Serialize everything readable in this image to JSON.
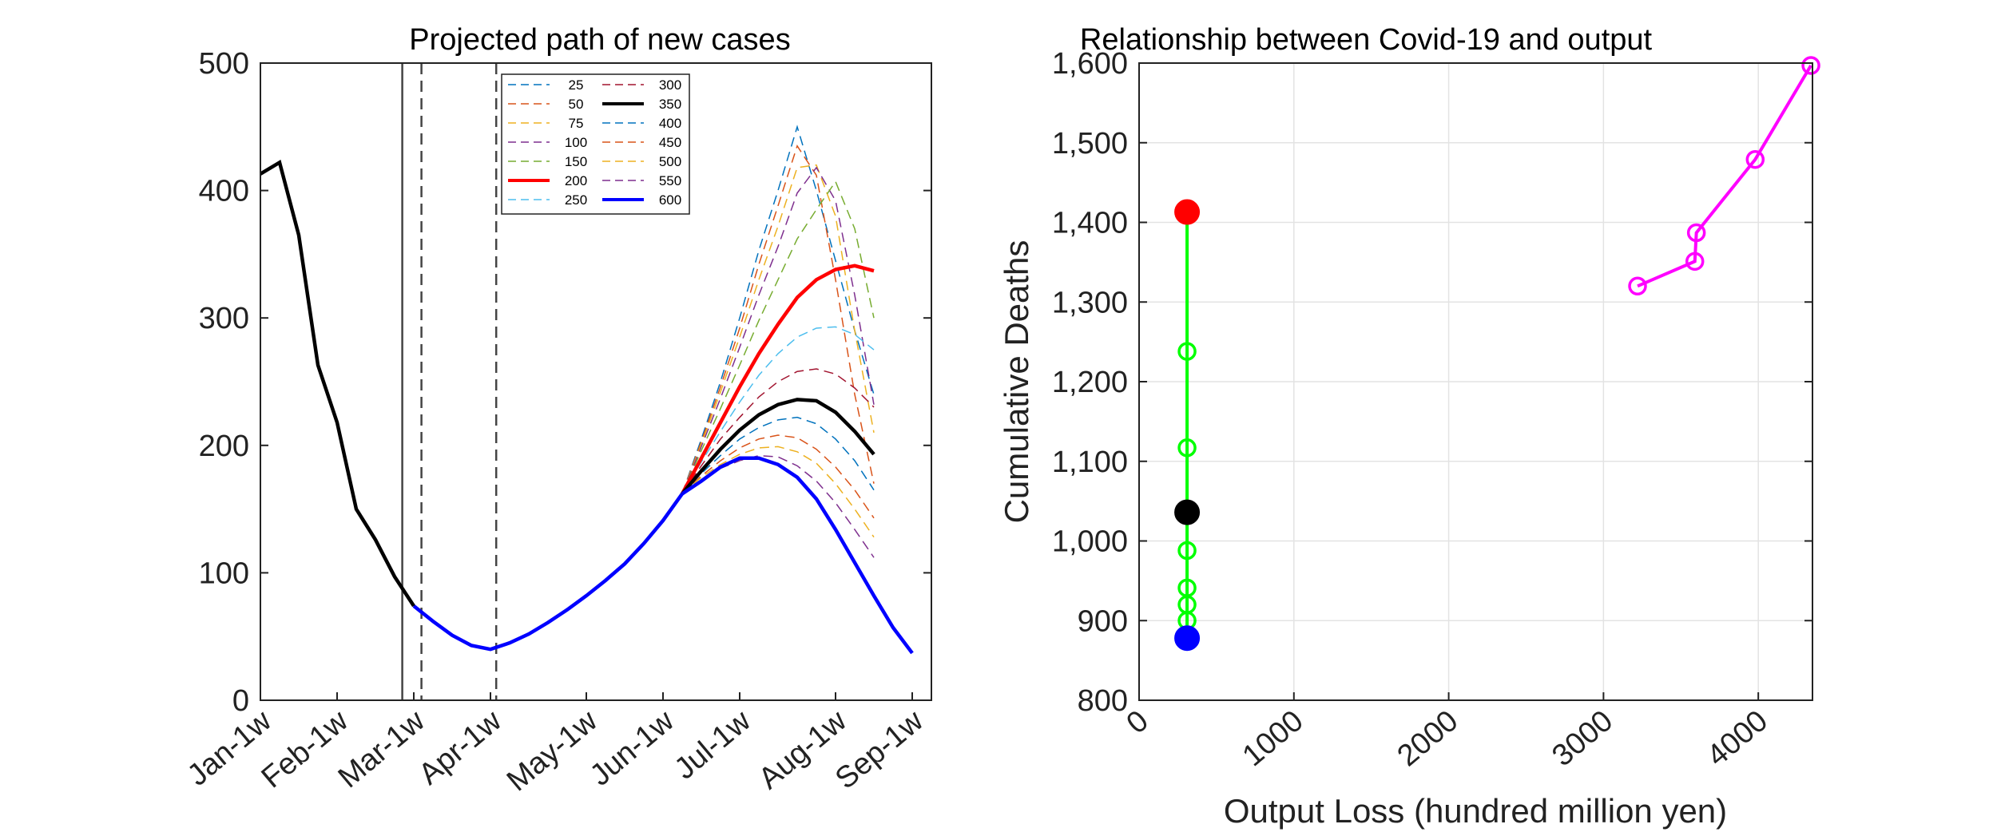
{
  "chart_data": [
    {
      "type": "line",
      "title": "Projected path of new cases",
      "xlabel": "",
      "ylabel": "",
      "ylim": [
        0,
        500
      ],
      "xticks": [
        {
          "label": "Jan-1w",
          "week": 1
        },
        {
          "label": "Feb-1w",
          "week": 5
        },
        {
          "label": "Mar-1w",
          "week": 9
        },
        {
          "label": "Apr-1w",
          "week": 13
        },
        {
          "label": "May-1w",
          "week": 18
        },
        {
          "label": "Jun-1w",
          "week": 22
        },
        {
          "label": "Jul-1w",
          "week": 26
        },
        {
          "label": "Aug-1w",
          "week": 31
        },
        {
          "label": "Sep-1w",
          "week": 35
        }
      ],
      "yticks": [
        0,
        100,
        200,
        300,
        400,
        500
      ],
      "xlim": [
        1,
        36
      ],
      "vlines": [
        {
          "week": 8.4,
          "style": "solid"
        },
        {
          "week": 9.4,
          "style": "dashed"
        },
        {
          "week": 13.3,
          "style": "dashed"
        }
      ],
      "observed": {
        "weeks": [
          1,
          2,
          3,
          4,
          5,
          6,
          7,
          8,
          9
        ],
        "values": [
          413,
          422,
          365,
          263,
          218,
          150,
          126,
          97,
          74
        ]
      },
      "common": {
        "weeks": [
          9,
          10,
          11,
          12,
          13,
          14,
          15,
          16,
          17,
          18,
          19,
          20,
          21,
          22,
          23
        ],
        "values": [
          74,
          62,
          51,
          43,
          40,
          45,
          52,
          61,
          71,
          82,
          94,
          107,
          123,
          141,
          162
        ]
      },
      "legend": {
        "placement": "top-center",
        "columns": 2
      },
      "series": [
        {
          "name": "25",
          "color": "#0072BD",
          "style": "dashed",
          "values": [
            162,
            205,
            250,
            300,
            353,
            400,
            450,
            400,
            345,
            290,
            240
          ]
        },
        {
          "name": "50",
          "color": "#D95319",
          "style": "dashed",
          "values": [
            162,
            203,
            246,
            292,
            342,
            388,
            435,
            412,
            330,
            240,
            170
          ]
        },
        {
          "name": "75",
          "color": "#EDB120",
          "style": "dashed",
          "values": [
            162,
            201,
            242,
            285,
            330,
            372,
            418,
            420,
            380,
            290,
            210
          ]
        },
        {
          "name": "100",
          "color": "#7E2F8E",
          "style": "dashed",
          "values": [
            162,
            199,
            237,
            277,
            318,
            356,
            398,
            418,
            392,
            318,
            232
          ]
        },
        {
          "name": "150",
          "color": "#77AC30",
          "style": "dashed",
          "values": [
            162,
            196,
            229,
            263,
            298,
            330,
            362,
            385,
            407,
            370,
            300
          ]
        },
        {
          "name": "200",
          "color": "#FF0000",
          "style": "solid",
          "width": "thick",
          "values": [
            162,
            190,
            218,
            246,
            272,
            295,
            316,
            330,
            338,
            341,
            337
          ]
        },
        {
          "name": "250",
          "color": "#4DBEEE",
          "style": "dashed",
          "values": [
            162,
            187,
            211,
            234,
            255,
            272,
            285,
            292,
            293,
            287,
            275
          ]
        },
        {
          "name": "300",
          "color": "#A2142F",
          "style": "dashed",
          "values": [
            162,
            184,
            205,
            222,
            238,
            250,
            258,
            260,
            256,
            245,
            230
          ]
        },
        {
          "name": "350",
          "color": "#000000",
          "style": "solid",
          "width": "thick",
          "values": [
            162,
            180,
            197,
            212,
            224,
            232,
            236,
            235,
            226,
            211,
            193
          ]
        },
        {
          "name": "400",
          "color": "#0072BD",
          "style": "dashed",
          "values": [
            162,
            178,
            192,
            205,
            214,
            220,
            222,
            217,
            205,
            188,
            165
          ]
        },
        {
          "name": "450",
          "color": "#D95319",
          "style": "dashed",
          "values": [
            162,
            176,
            188,
            198,
            205,
            208,
            206,
            197,
            183,
            165,
            143
          ]
        },
        {
          "name": "500",
          "color": "#EDB120",
          "style": "dashed",
          "values": [
            162,
            175,
            185,
            193,
            198,
            199,
            195,
            186,
            170,
            150,
            128
          ]
        },
        {
          "name": "550",
          "color": "#7E2F8E",
          "style": "dashed",
          "values": [
            162,
            173,
            182,
            188,
            192,
            191,
            184,
            172,
            155,
            134,
            112
          ]
        },
        {
          "name": "600",
          "color": "#0000FF",
          "style": "solid",
          "width": "thick",
          "values": [
            162,
            172,
            183,
            190,
            190,
            185,
            175,
            158,
            134,
            108,
            82,
            57,
            37
          ]
        }
      ],
      "series_weeks_start": 23
    },
    {
      "type": "scatter",
      "title": "Relationship between Covid-19 and output",
      "xlabel": "Output Loss (hundred million yen)",
      "ylabel": "Cumulative Deaths",
      "xlim": [
        0,
        4350
      ],
      "ylim": [
        800,
        1600
      ],
      "xticks": [
        0,
        1000,
        2000,
        3000,
        4000
      ],
      "yticks": [
        {
          "v": 800,
          "label": "800"
        },
        {
          "v": 900,
          "label": "900"
        },
        {
          "v": 1000,
          "label": "1,000"
        },
        {
          "v": 1100,
          "label": "1,100"
        },
        {
          "v": 1200,
          "label": "1,200"
        },
        {
          "v": 1300,
          "label": "1,300"
        },
        {
          "v": 1400,
          "label": "1,400"
        },
        {
          "v": 1500,
          "label": "1,500"
        },
        {
          "v": 1600,
          "label": "1,600"
        }
      ],
      "grid": true,
      "series": [
        {
          "name": "",
          "color": "#00FF00",
          "x": [
            310,
            310,
            310,
            310,
            310,
            310,
            310,
            310,
            310,
            310
          ],
          "y": [
            878,
            900,
            920,
            941,
            988,
            1036,
            1117,
            1238,
            1413,
            1413
          ]
        },
        {
          "name": "",
          "color": "#FF00FF",
          "x": [
            3220,
            3590,
            3600,
            3980,
            4340
          ],
          "y": [
            1320,
            1351,
            1387,
            1479,
            1597
          ]
        }
      ],
      "highlights": [
        {
          "x": 310,
          "y": 1413,
          "color": "#FF0000"
        },
        {
          "x": 310,
          "y": 1036,
          "color": "#000000"
        },
        {
          "x": 310,
          "y": 878,
          "color": "#0000FF"
        }
      ]
    }
  ]
}
